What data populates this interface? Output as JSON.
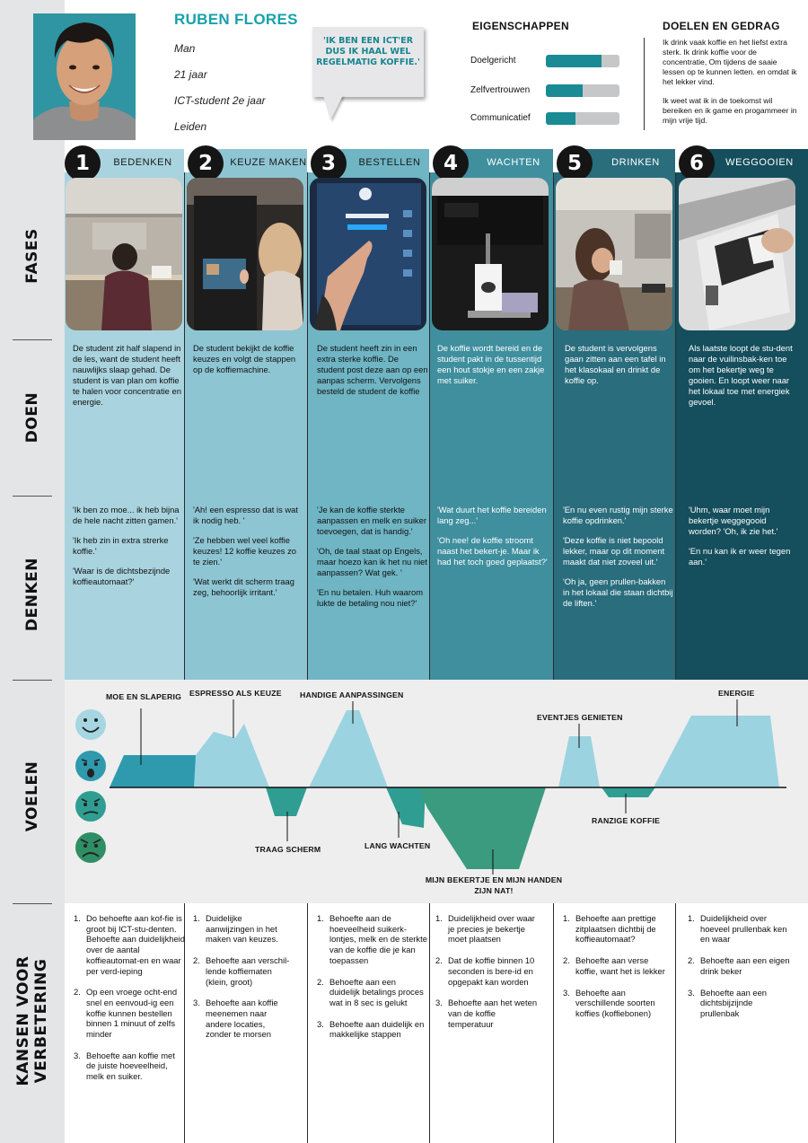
{
  "persona": {
    "name": "RUBEN FLORES",
    "gender": "Man",
    "age": "21 jaar",
    "occupation": "ICT-student 2e jaar",
    "city": "Leiden",
    "quote": "'IK BEN EEN ICT'ER DUS IK HAAL WEL REGELMATIG KOFFIE.'"
  },
  "traits": {
    "title": "EIGENSCHAPPEN",
    "items": [
      {
        "label": "Doelgericht",
        "level": 0.76
      },
      {
        "label": "Zelfvertrouwen",
        "level": 0.5
      },
      {
        "label": "Communicatief",
        "level": 0.4
      }
    ]
  },
  "goals": {
    "title": "DOELEN EN GEDRAG",
    "p1": "Ik drink vaak koffie en het liefst extra sterk. Ik drink koffie voor de concentratie, Om tijdens de saaie lessen op te kunnen letten. en omdat ik het lekker vind.",
    "p2": "Ik weet wat ik in de toekomst wil bereiken en ik game en progammeer in mijn vrije tijd."
  },
  "rows": {
    "fases": "FASES",
    "doen": "DOEN",
    "denken": "DENKEN",
    "voelen": "VOELEN",
    "kansen": "KANSEN VOOR VERBETERING"
  },
  "phases": [
    {
      "num": "1",
      "title": "BEDENKEN",
      "doen": "De student zit half slapend in de les, want de student heeft nauwlijks slaap gehad. De student is van plan om koffie te halen voor concentratie en energie.",
      "denken": [
        "'Ik ben zo moe... ik heb bijna de hele nacht zitten gamen.'",
        "'Ik heb zin in extra strerke koffie.'",
        "'Waar is de dichtsbezijnde koffieautomaat?'"
      ],
      "kansen": [
        "Do behoefte aan kof-fie is groot bij ICT-stu-denten. Behoefte aan duidelijkheid over de aantal koffieautomat-en en waar per verd-ieping",
        "Op een vroege ocht-end snel en eenvoud-ig een koffie kunnen bestellen binnen 1 minuut of zelfs minder",
        "Behoefte aan koffie met de juiste hoeveelheid, melk en suiker."
      ],
      "photo_caption": "student aan tafel in klaslokaal"
    },
    {
      "num": "2",
      "title": "KEUZE MAKEN",
      "doen": "De student bekijkt de koffie keuzes en volgt de stappen op de koffiemachine.",
      "denken": [
        "'Ah! een espresso dat is wat ik nodig heb. '",
        "'Ze hebben wel veel koffie keuzes! 12 koffie keuzes zo te zien.'",
        "'Wat werkt dit scherm traag zeg, behoorlijk irritant.'"
      ],
      "kansen": [
        "Duidelijke aanwijzingen in het maken van keuzes.",
        "Behoefte aan verschil-lende koffiematen (klein, groot)",
        "Behoefte aan koffie meenemen naar andere locaties, zonder te morsen"
      ],
      "photo_caption": "student bij koffiemachine"
    },
    {
      "num": "3",
      "title": "BESTELLEN",
      "doen": "De student heeft zin in een extra sterke koffie. De student post deze aan op een aanpas scherm. Vervolgens besteld de student de koffie",
      "denken": [
        "'Je kan de koffie sterkte aanpassen en melk en suiker toevoegen, dat is handig.'",
        "'Oh, de taal staat op Engels, maar hoezo kan ik het nu niet aanpassen? Wat gek. '",
        "'En nu betalen. Huh waarom lukte de betaling nou niet?'"
      ],
      "kansen": [
        "Behoefte aan de hoeveelheid suikerk-lontjes, melk en de sterkte van de koffie die je kan toepassen",
        "Behoefte aan een duidelijk betalings proces wat in 8 sec is gelukt",
        "Behoefte aan duidelijk en makkelijke stappen"
      ],
      "photo_caption": "hand op touchscreen"
    },
    {
      "num": "4",
      "title": "WACHTEN",
      "doen": "De koffie wordt bereid en de student pakt in de tussentijd een hout stokje en een zakje met suiker.",
      "denken": [
        "'Wat duurt het koffie bereiden lang zeg...'",
        "'Oh nee! de koffie stroomt naast het bekert-je. Maar ik had het toch goed geplaatst?'"
      ],
      "kansen": [
        "Duidelijkheid over waar je precies je bekertje moet plaatsen",
        "Dat de koffie binnen 10 seconden is bere-id en opgepakt kan worden",
        "Behoefte aan het weten van de koffie temperatuur"
      ],
      "photo_caption": "bekertje in koffieautomaat"
    },
    {
      "num": "5",
      "title": "DRINKEN",
      "doen": "De student is vervolgens gaan zitten aan een tafel in het klasokaal en drinkt de koffie op.",
      "denken": [
        "'En nu even rustig mijn sterke koffie opdrinken.'",
        "'Deze koffie is niet bepoold lekker, maar op dit moment maakt dat niet zoveel uit.'",
        "'Oh ja, geen prullen-bakken in het lokaal die staan dichtbij de liften.'"
      ],
      "kansen": [
        "Behoefte aan prettige zitplaatsen dichtbij de koffieautomaat?",
        "Behoefte aan verse koffie, want het is lekker",
        "Behoefte aan verschillende soorten koffies (koffiebonen)"
      ],
      "photo_caption": "student drinkt koffie"
    },
    {
      "num": "6",
      "title": "WEGGOOIEN",
      "doen": "Als laatste loopt de stu-dent naar de vuilinsbak-ken toe om het bekertje weg te gooien. En loopt weer naar het lokaal toe met energiek gevoel.",
      "denken": [
        "'Uhm, waar moet mijn bekertje weggegooid worden? 'Oh, ik zie het.'",
        "'En nu kan ik er weer tegen aan.'"
      ],
      "kansen": [
        "Duidelijkheid over hoeveel prullenbak ken en waar",
        "Behoefte aan een eigen drink beker",
        "Behoefte aan een dichtsbijzijnde prullenbak"
      ],
      "photo_caption": "bekertje in prullenbak"
    }
  ],
  "emotions": {
    "labels": [
      "MOE EN SLAPERIG",
      "ESPRESSO ALS KEUZE",
      "HANDIGE AANPASSINGEN",
      "ENERGIE",
      "EVENTJES GENIETEN",
      "RANZIGE KOFFIE",
      "TRAAG SCHERM",
      "LANG WACHTEN",
      "MIJN BEKERTJE EN MIJN HANDEN ZIJN NAT!"
    ],
    "faces": [
      "very-happy-face-icon",
      "shocked-face-icon",
      "annoyed-face-icon",
      "angry-face-icon"
    ],
    "curve_levels": [
      1.8,
      2.6,
      -1.0,
      2.9,
      -0.8,
      -2.6,
      1.9,
      -0.3,
      2.5
    ]
  },
  "colors": {
    "col1": "#a9d4df",
    "col2": "#8ec5d3",
    "col3": "#6fb5c4",
    "col4": "#3f8f9e",
    "col5": "#2a6d7d",
    "col6": "#154e5c",
    "teal_dark": "#1a8b94",
    "rail": "#e4e5e7"
  }
}
